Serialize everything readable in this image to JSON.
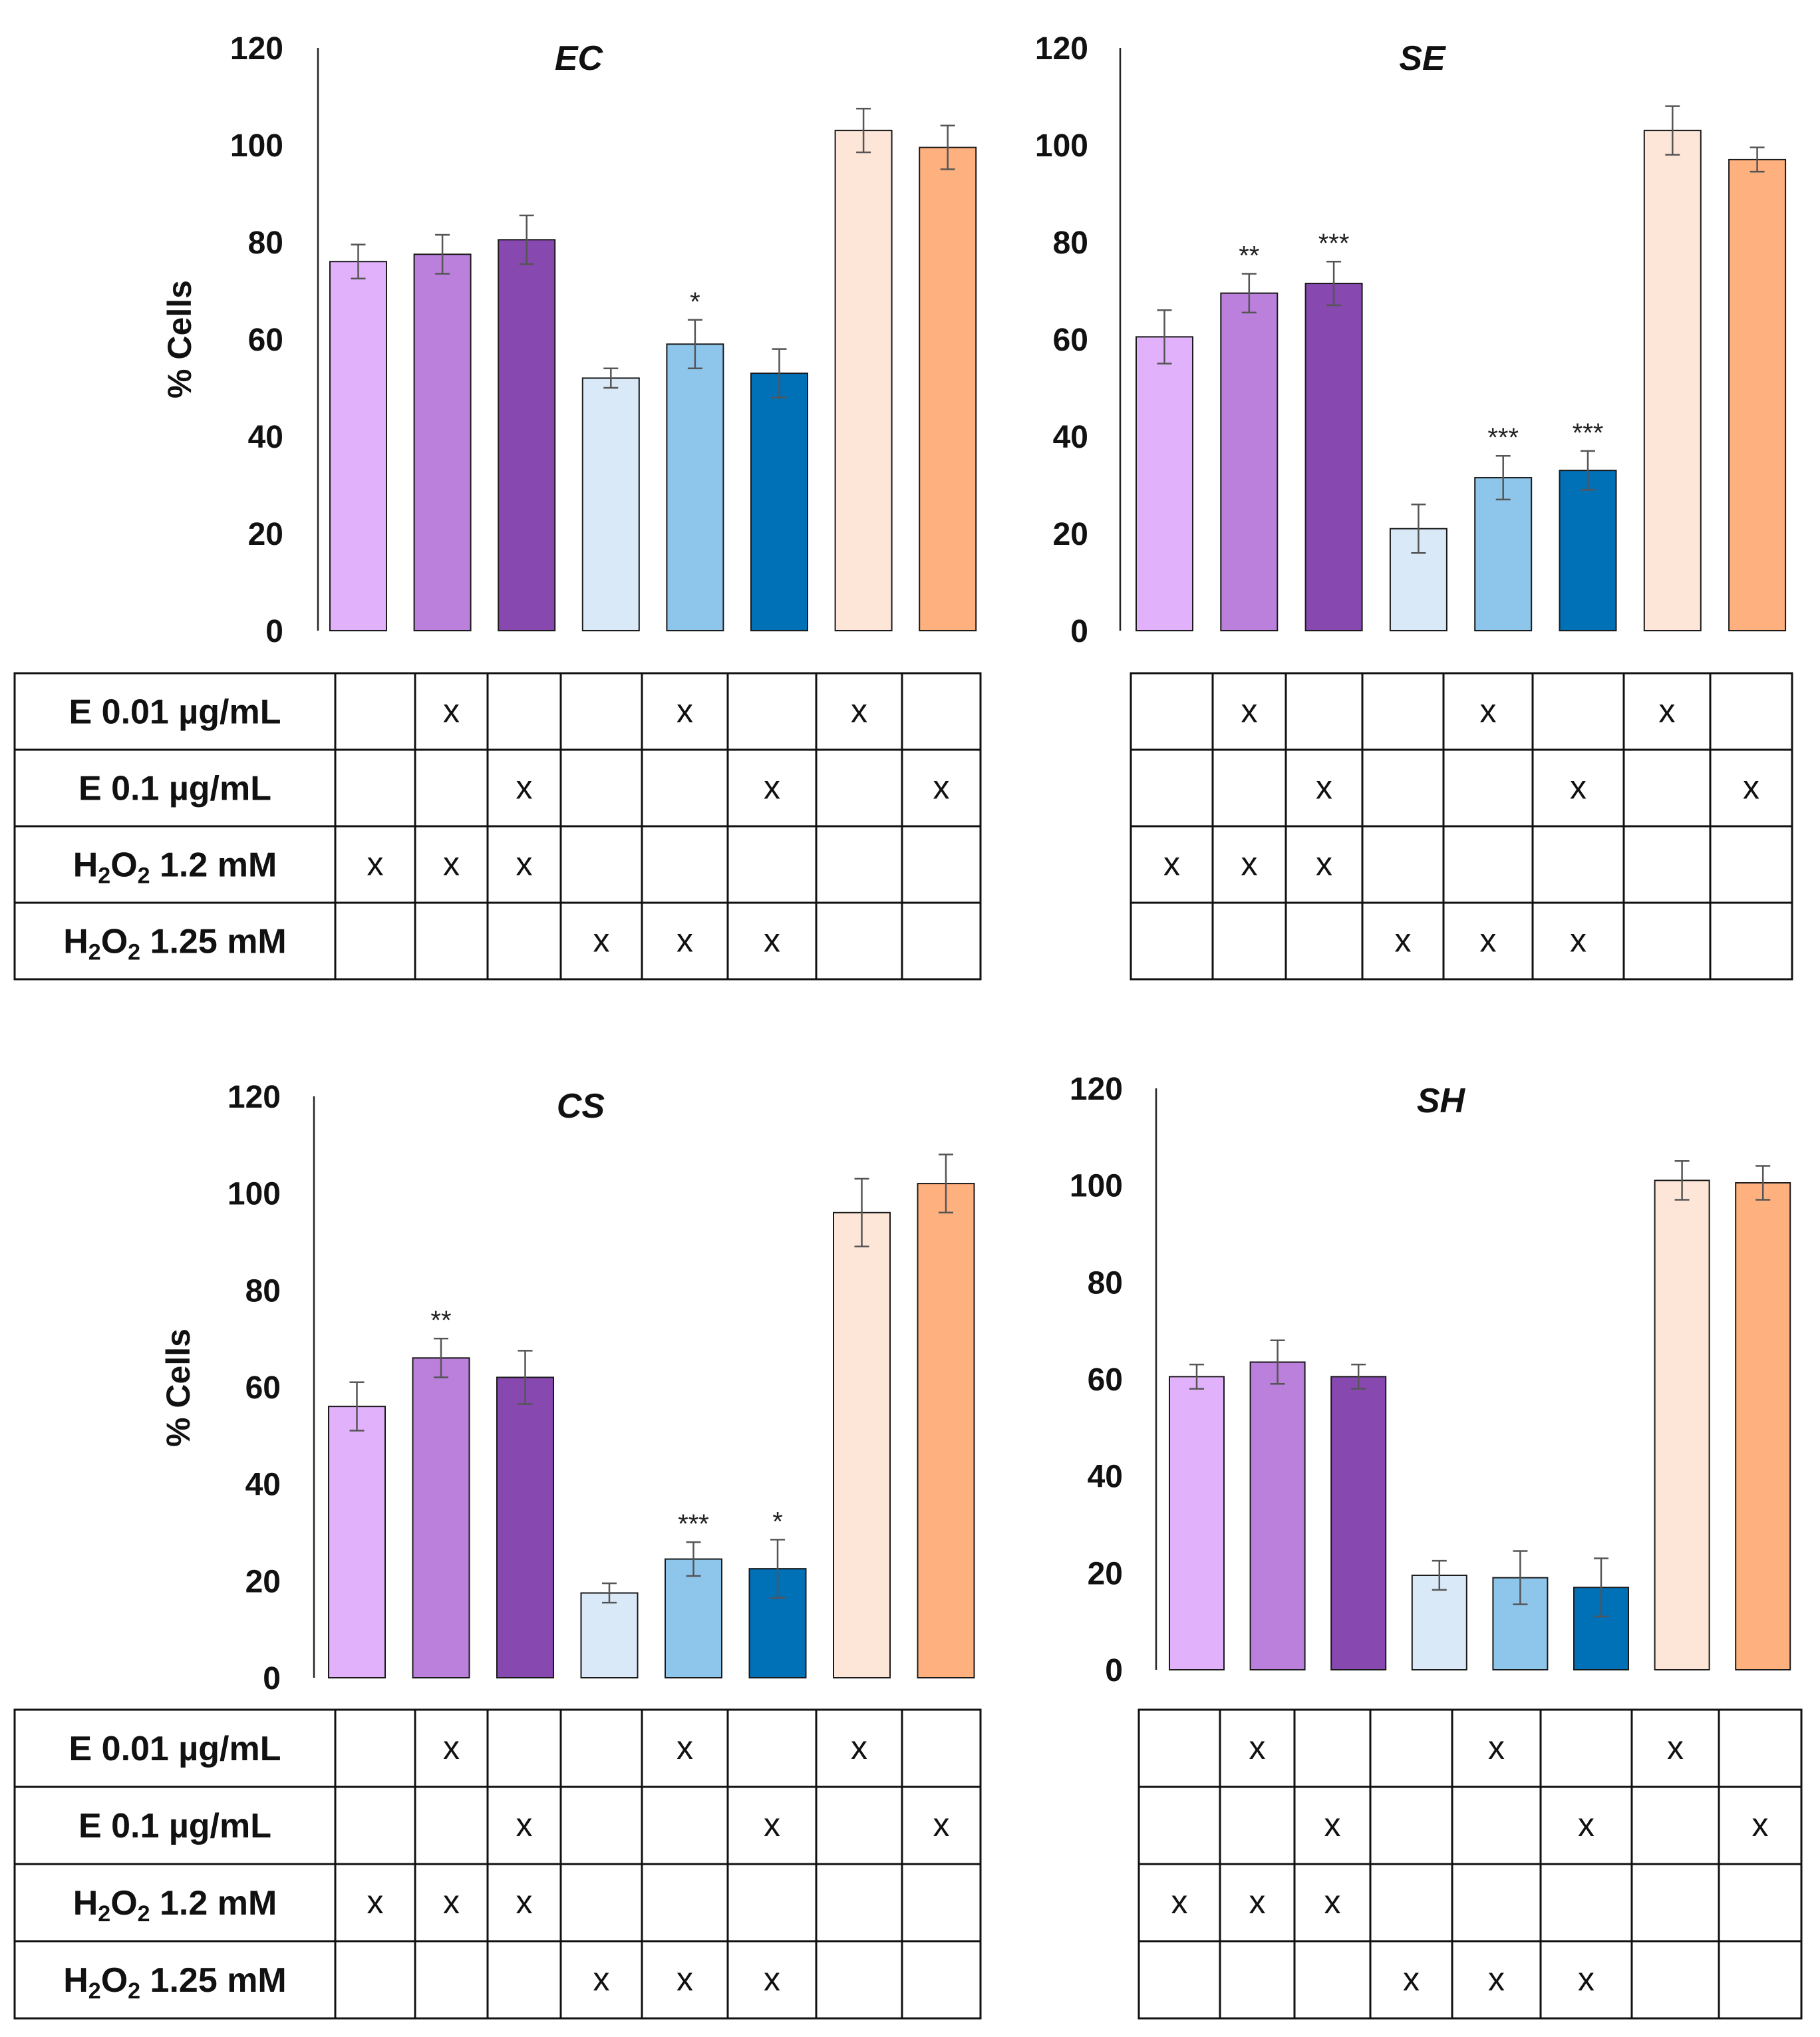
{
  "figure": {
    "y_axis_label": "% Cells",
    "rows": [
      {
        "key": "e001",
        "label": "E 0.01 µg/mL",
        "flags": [
          0,
          1,
          0,
          0,
          1,
          0,
          1,
          0
        ]
      },
      {
        "key": "e01",
        "label": "E 0.1 µg/mL",
        "flags": [
          0,
          0,
          1,
          0,
          0,
          1,
          0,
          1
        ]
      },
      {
        "key": "h12",
        "label_parts": [
          "H",
          "2",
          "O",
          "2",
          " 1.2 mM"
        ],
        "flags": [
          1,
          1,
          1,
          0,
          0,
          0,
          0,
          0
        ]
      },
      {
        "key": "h125",
        "label_parts": [
          "H",
          "2",
          "O",
          "2",
          " 1.25 mM"
        ],
        "flags": [
          0,
          0,
          0,
          1,
          1,
          1,
          0,
          0
        ]
      }
    ],
    "mark_symbol": "x"
  },
  "chart_data": [
    {
      "type": "bar",
      "title": "EC",
      "ylabel": "% Cells",
      "ylim": [
        0,
        120
      ],
      "yticks": [
        0,
        20,
        40,
        60,
        80,
        100,
        120
      ],
      "values": [
        76,
        77.5,
        80.5,
        52,
        59,
        53,
        103,
        99.5
      ],
      "errors": [
        3.5,
        4,
        5,
        2,
        5,
        5,
        4.5,
        4.5
      ],
      "significance": [
        "",
        "",
        "",
        "",
        "*",
        "",
        "",
        ""
      ],
      "colors": [
        "#e1b1fb",
        "#bb7fdc",
        "#8748b0",
        "#d9e9f8",
        "#8dc5eb",
        "#0070b7",
        "#fde5d7",
        "#feb07f"
      ],
      "show_row_labels": true
    },
    {
      "type": "bar",
      "title": "SE",
      "ylabel": "",
      "ylim": [
        0,
        120
      ],
      "yticks": [
        0,
        20,
        40,
        60,
        80,
        100,
        120
      ],
      "values": [
        60.5,
        69.5,
        71.5,
        21,
        31.5,
        33,
        103,
        97
      ],
      "errors": [
        5.5,
        4,
        4.5,
        5,
        4.5,
        4,
        5,
        2.5
      ],
      "significance": [
        "",
        "**",
        "***",
        "",
        "***",
        "***",
        "",
        ""
      ],
      "colors": [
        "#e1b1fb",
        "#bb7fdc",
        "#8748b0",
        "#d9e9f8",
        "#8dc5eb",
        "#0070b7",
        "#fde5d7",
        "#feb07f"
      ],
      "show_row_labels": false
    },
    {
      "type": "bar",
      "title": "CS",
      "ylabel": "% Cells",
      "ylim": [
        0,
        120
      ],
      "yticks": [
        0,
        20,
        40,
        60,
        80,
        100,
        120
      ],
      "values": [
        56,
        66,
        62,
        17.5,
        24.5,
        22.5,
        96,
        102
      ],
      "errors": [
        5,
        4,
        5.5,
        2,
        3.5,
        6,
        7,
        6
      ],
      "significance": [
        "",
        "**",
        "",
        "",
        "***",
        "*",
        "",
        ""
      ],
      "colors": [
        "#e1b1fb",
        "#bb7fdc",
        "#8748b0",
        "#d9e9f8",
        "#8dc5eb",
        "#0070b7",
        "#fde5d7",
        "#feb07f"
      ],
      "show_row_labels": true
    },
    {
      "type": "bar",
      "title": "SH",
      "ylabel": "",
      "ylim": [
        0,
        120
      ],
      "yticks": [
        0,
        20,
        40,
        60,
        80,
        100,
        120
      ],
      "values": [
        60.5,
        63.5,
        60.5,
        19.5,
        19,
        17,
        101,
        100.5
      ],
      "errors": [
        2.5,
        4.5,
        2.5,
        3,
        5.5,
        6,
        4,
        3.5
      ],
      "significance": [
        "",
        "",
        "",
        "",
        "",
        "",
        "",
        ""
      ],
      "colors": [
        "#e1b1fb",
        "#bb7fdc",
        "#8748b0",
        "#d9e9f8",
        "#8dc5eb",
        "#0070b7",
        "#fde5d7",
        "#feb07f"
      ],
      "show_row_labels": false
    }
  ]
}
